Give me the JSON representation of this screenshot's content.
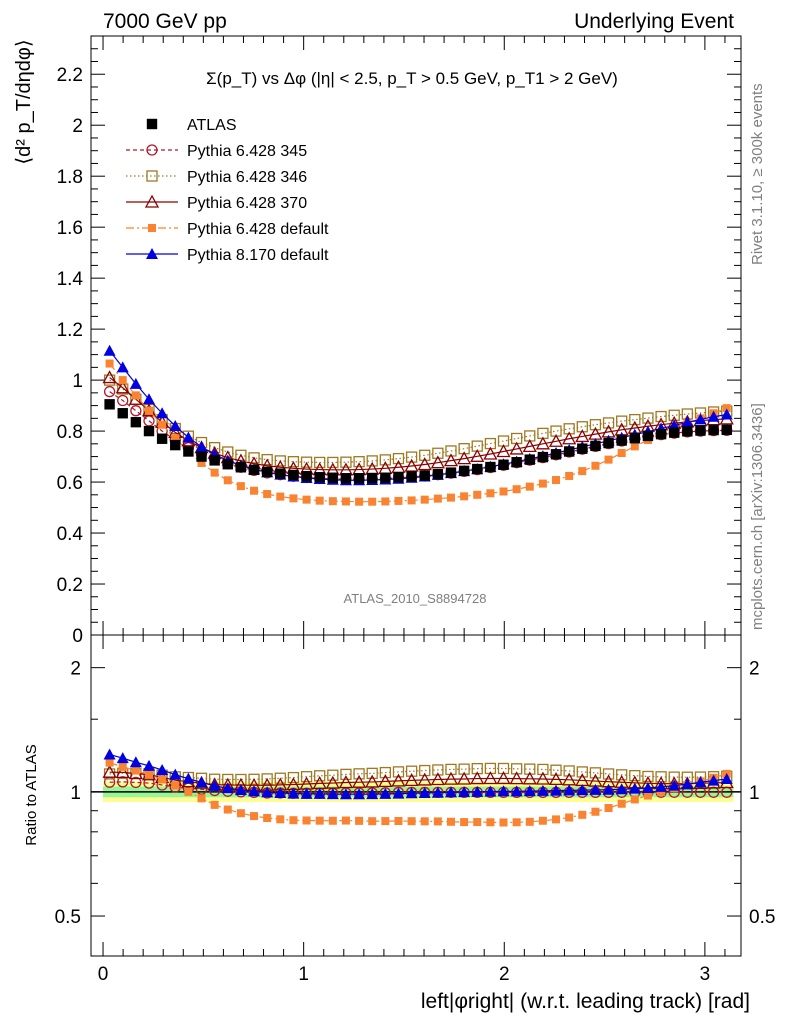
{
  "header": {
    "left": "7000 GeV pp",
    "right": "Underlying Event"
  },
  "side_labels": {
    "rivet": "Rivet 3.1.10, ≥ 300k events",
    "mcplots": "mcplots.cern.ch [arXiv:1306.3436]"
  },
  "colors": {
    "atlas": "#000000",
    "p345": "#b2182b",
    "p346": "#a07820",
    "p370": "#8b0000",
    "p6def": "#f98330",
    "p8def": "#0000e0",
    "band_inner": "#98f598",
    "band_outer": "#fdfd90"
  },
  "chart_data": [
    {
      "type": "scatter",
      "panel": "main",
      "title": "Σ(p_T) vs Δφ (|η| < 2.5, p_T > 0.5 GeV, p_T1 > 2 GeV)",
      "ylabel": "⟨d² p_T/dηdφ⟩",
      "xlabel": "",
      "watermark": "ATLAS_2010_S8894728",
      "xlim": [
        -0.06,
        3.18
      ],
      "ylim": [
        0,
        2.35
      ],
      "yticks": [
        "0",
        "0.2",
        "0.4",
        "0.6",
        "0.8",
        "1",
        "1.2",
        "1.4",
        "1.6",
        "1.8",
        "2",
        "2.2"
      ],
      "legend_position": "top-left",
      "x": [
        0.0327,
        0.0982,
        0.1636,
        0.2291,
        0.2945,
        0.36,
        0.4254,
        0.4909,
        0.5563,
        0.6218,
        0.6872,
        0.7527,
        0.8181,
        0.8836,
        0.949,
        1.0145,
        1.0799,
        1.1454,
        1.2108,
        1.2763,
        1.3417,
        1.4072,
        1.4726,
        1.5381,
        1.6035,
        1.669,
        1.7344,
        1.7999,
        1.8653,
        1.9308,
        1.9962,
        2.0617,
        2.1271,
        2.1926,
        2.258,
        2.3235,
        2.3889,
        2.4544,
        2.5198,
        2.5853,
        2.6507,
        2.7162,
        2.7816,
        2.8471,
        2.9125,
        2.978,
        3.0434,
        3.1089
      ],
      "series": [
        {
          "name": "ATLAS",
          "values": [
            0.905,
            0.87,
            0.835,
            0.8,
            0.77,
            0.745,
            0.72,
            0.7,
            0.685,
            0.67,
            0.658,
            0.648,
            0.64,
            0.633,
            0.628,
            0.623,
            0.619,
            0.617,
            0.615,
            0.615,
            0.616,
            0.617,
            0.619,
            0.622,
            0.626,
            0.631,
            0.637,
            0.644,
            0.651,
            0.659,
            0.668,
            0.678,
            0.688,
            0.698,
            0.709,
            0.72,
            0.731,
            0.742,
            0.753,
            0.763,
            0.772,
            0.781,
            0.788,
            0.794,
            0.799,
            0.802,
            0.804,
            0.805
          ]
        },
        {
          "name": "Pythia 6.428 345",
          "values": [
            0.955,
            0.92,
            0.88,
            0.84,
            0.8,
            0.765,
            0.735,
            0.71,
            0.69,
            0.672,
            0.658,
            0.646,
            0.636,
            0.629,
            0.623,
            0.618,
            0.614,
            0.612,
            0.611,
            0.611,
            0.612,
            0.614,
            0.617,
            0.62,
            0.624,
            0.629,
            0.635,
            0.642,
            0.649,
            0.657,
            0.666,
            0.676,
            0.686,
            0.696,
            0.707,
            0.718,
            0.729,
            0.74,
            0.751,
            0.761,
            0.77,
            0.779,
            0.786,
            0.792,
            0.797,
            0.8,
            0.802,
            0.803
          ]
        },
        {
          "name": "Pythia 6.428 346",
          "values": [
            1.0,
            0.965,
            0.925,
            0.885,
            0.845,
            0.81,
            0.78,
            0.755,
            0.735,
            0.718,
            0.705,
            0.695,
            0.688,
            0.683,
            0.68,
            0.678,
            0.677,
            0.677,
            0.678,
            0.68,
            0.683,
            0.687,
            0.692,
            0.698,
            0.705,
            0.713,
            0.722,
            0.731,
            0.741,
            0.751,
            0.761,
            0.771,
            0.781,
            0.791,
            0.8,
            0.809,
            0.817,
            0.825,
            0.832,
            0.839,
            0.845,
            0.851,
            0.857,
            0.862,
            0.867,
            0.871,
            0.875,
            0.878
          ]
        },
        {
          "name": "Pythia 6.428 370",
          "values": [
            1.01,
            0.97,
            0.925,
            0.88,
            0.835,
            0.795,
            0.762,
            0.735,
            0.713,
            0.696,
            0.683,
            0.672,
            0.664,
            0.658,
            0.654,
            0.651,
            0.649,
            0.648,
            0.648,
            0.649,
            0.651,
            0.654,
            0.658,
            0.663,
            0.669,
            0.676,
            0.684,
            0.692,
            0.701,
            0.71,
            0.72,
            0.73,
            0.74,
            0.75,
            0.76,
            0.77,
            0.779,
            0.788,
            0.797,
            0.805,
            0.812,
            0.819,
            0.825,
            0.831,
            0.836,
            0.841,
            0.845,
            0.848
          ]
        },
        {
          "name": "Pythia 6.428 default",
          "values": [
            1.065,
            1.0,
            0.94,
            0.88,
            0.825,
            0.772,
            0.72,
            0.675,
            0.637,
            0.607,
            0.584,
            0.566,
            0.553,
            0.543,
            0.536,
            0.531,
            0.527,
            0.525,
            0.524,
            0.523,
            0.523,
            0.524,
            0.526,
            0.528,
            0.531,
            0.535,
            0.539,
            0.544,
            0.55,
            0.556,
            0.563,
            0.572,
            0.582,
            0.594,
            0.608,
            0.624,
            0.643,
            0.664,
            0.688,
            0.714,
            0.74,
            0.765,
            0.788,
            0.81,
            0.83,
            0.85,
            0.87,
            0.89
          ]
        },
        {
          "name": "Pythia 8.170 default",
          "values": [
            1.115,
            1.05,
            0.985,
            0.925,
            0.87,
            0.82,
            0.775,
            0.738,
            0.708,
            0.684,
            0.665,
            0.65,
            0.638,
            0.629,
            0.622,
            0.616,
            0.612,
            0.609,
            0.607,
            0.607,
            0.608,
            0.61,
            0.613,
            0.617,
            0.622,
            0.628,
            0.635,
            0.643,
            0.651,
            0.66,
            0.67,
            0.68,
            0.691,
            0.702,
            0.714,
            0.726,
            0.738,
            0.75,
            0.762,
            0.774,
            0.786,
            0.798,
            0.81,
            0.822,
            0.834,
            0.846,
            0.856,
            0.865
          ]
        }
      ]
    },
    {
      "type": "scatter",
      "panel": "ratio",
      "ylabel": "Ratio to ATLAS",
      "xlabel": "left|φright| (w.r.t. leading track) [rad]",
      "xlim": [
        -0.06,
        3.18
      ],
      "ylim": [
        0.4,
        2.4
      ],
      "log_scale_y": true,
      "yticks": [
        "0.5",
        "1",
        "2"
      ],
      "xticks": [
        "0",
        "1",
        "2",
        "3"
      ],
      "band_inner": [
        0.97,
        1.03
      ],
      "band_outer": [
        0.945,
        1.06
      ]
    }
  ],
  "legend": [
    {
      "label": "ATLAS"
    },
    {
      "label": "Pythia 6.428 345"
    },
    {
      "label": "Pythia 6.428 346"
    },
    {
      "label": "Pythia 6.428 370"
    },
    {
      "label": "Pythia 6.428 default"
    },
    {
      "label": "Pythia 8.170 default"
    }
  ]
}
